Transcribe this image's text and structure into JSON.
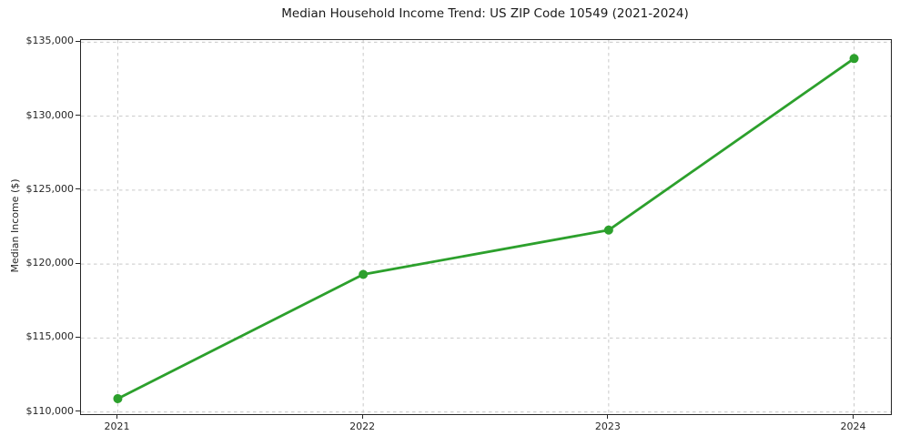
{
  "chart_data": {
    "type": "line",
    "title": "Median Household Income Trend: US ZIP Code 10549 (2021-2024)",
    "xlabel": "",
    "ylabel": "Median Income ($)",
    "x": [
      2021,
      2022,
      2023,
      2024
    ],
    "x_tick_labels": [
      "2021",
      "2022",
      "2023",
      "2024"
    ],
    "series": [
      {
        "name": "median-household-income",
        "values": [
          110900,
          119300,
          122300,
          133900
        ],
        "color": "#2ca02c",
        "marker": "circle"
      }
    ],
    "y_ticks": [
      {
        "value": 110000,
        "label": "$110,000"
      },
      {
        "value": 115000,
        "label": "$115,000"
      },
      {
        "value": 120000,
        "label": "$120,000"
      },
      {
        "value": 125000,
        "label": "$125,000"
      },
      {
        "value": 130000,
        "label": "$130,000"
      },
      {
        "value": 135000,
        "label": "$135,000"
      }
    ],
    "xlim": [
      2020.85,
      2024.15
    ],
    "ylim": [
      109850,
      135150
    ],
    "grid": "on",
    "grid_style": "dashed",
    "grid_color": "#c9c9c9",
    "legend": "none",
    "line_width": 2.8,
    "marker_radius": 5
  }
}
